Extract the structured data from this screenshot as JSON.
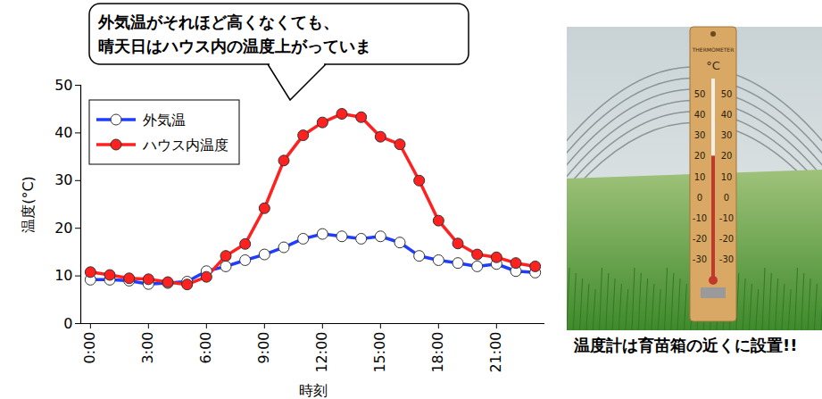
{
  "chart_data": {
    "type": "line",
    "annotation": [
      "外気温がそれほど高くなくても、",
      "晴天日はハウス内の温度上がっていま"
    ],
    "x_label": "時刻",
    "y_label": "温度(°C)",
    "x": [
      0,
      1,
      2,
      3,
      4,
      5,
      6,
      7,
      8,
      9,
      10,
      11,
      12,
      13,
      14,
      15,
      16,
      17,
      18,
      19,
      20,
      21,
      22,
      23
    ],
    "xlim": [
      -0.5,
      23.5
    ],
    "xticks": [
      {
        "value": 0,
        "label": "0:00"
      },
      {
        "value": 3,
        "label": "3:00"
      },
      {
        "value": 6,
        "label": "6:00"
      },
      {
        "value": 9,
        "label": "9:00"
      },
      {
        "value": 12,
        "label": "12:00"
      },
      {
        "value": 15,
        "label": "15:00"
      },
      {
        "value": 18,
        "label": "18:00"
      },
      {
        "value": 21,
        "label": "21:00"
      }
    ],
    "ylim": [
      0,
      50
    ],
    "yticks": [
      0,
      10,
      20,
      30,
      40,
      50
    ],
    "grid": false,
    "legend": "top-left",
    "series": [
      {
        "name": "外気温",
        "color": "#1f3cff",
        "marker": "circle_open",
        "values": [
          9.2,
          9.2,
          9.0,
          8.3,
          8.5,
          8.8,
          11.0,
          12.0,
          13.3,
          14.5,
          16.0,
          17.8,
          18.8,
          18.3,
          17.8,
          18.3,
          17.0,
          14.2,
          13.3,
          12.7,
          12.0,
          12.5,
          11.0,
          10.7
        ]
      },
      {
        "name": "ハウス内温度",
        "color": "#ff2020",
        "marker": "circle",
        "values": [
          10.8,
          10.2,
          9.5,
          9.3,
          8.7,
          8.2,
          9.8,
          14.2,
          16.7,
          24.2,
          34.2,
          39.5,
          42.2,
          44.0,
          43.3,
          39.2,
          37.6,
          30.0,
          21.6,
          16.8,
          14.5,
          13.9,
          12.7,
          12.0
        ]
      }
    ]
  },
  "photo": {
    "caption": "温度計は育苗箱の近くに設置!!",
    "thermometer": {
      "label": "THERMOMETER",
      "unit": "°C",
      "scale": [
        50,
        40,
        30,
        20,
        10,
        0,
        -10,
        -20,
        -30
      ]
    }
  }
}
